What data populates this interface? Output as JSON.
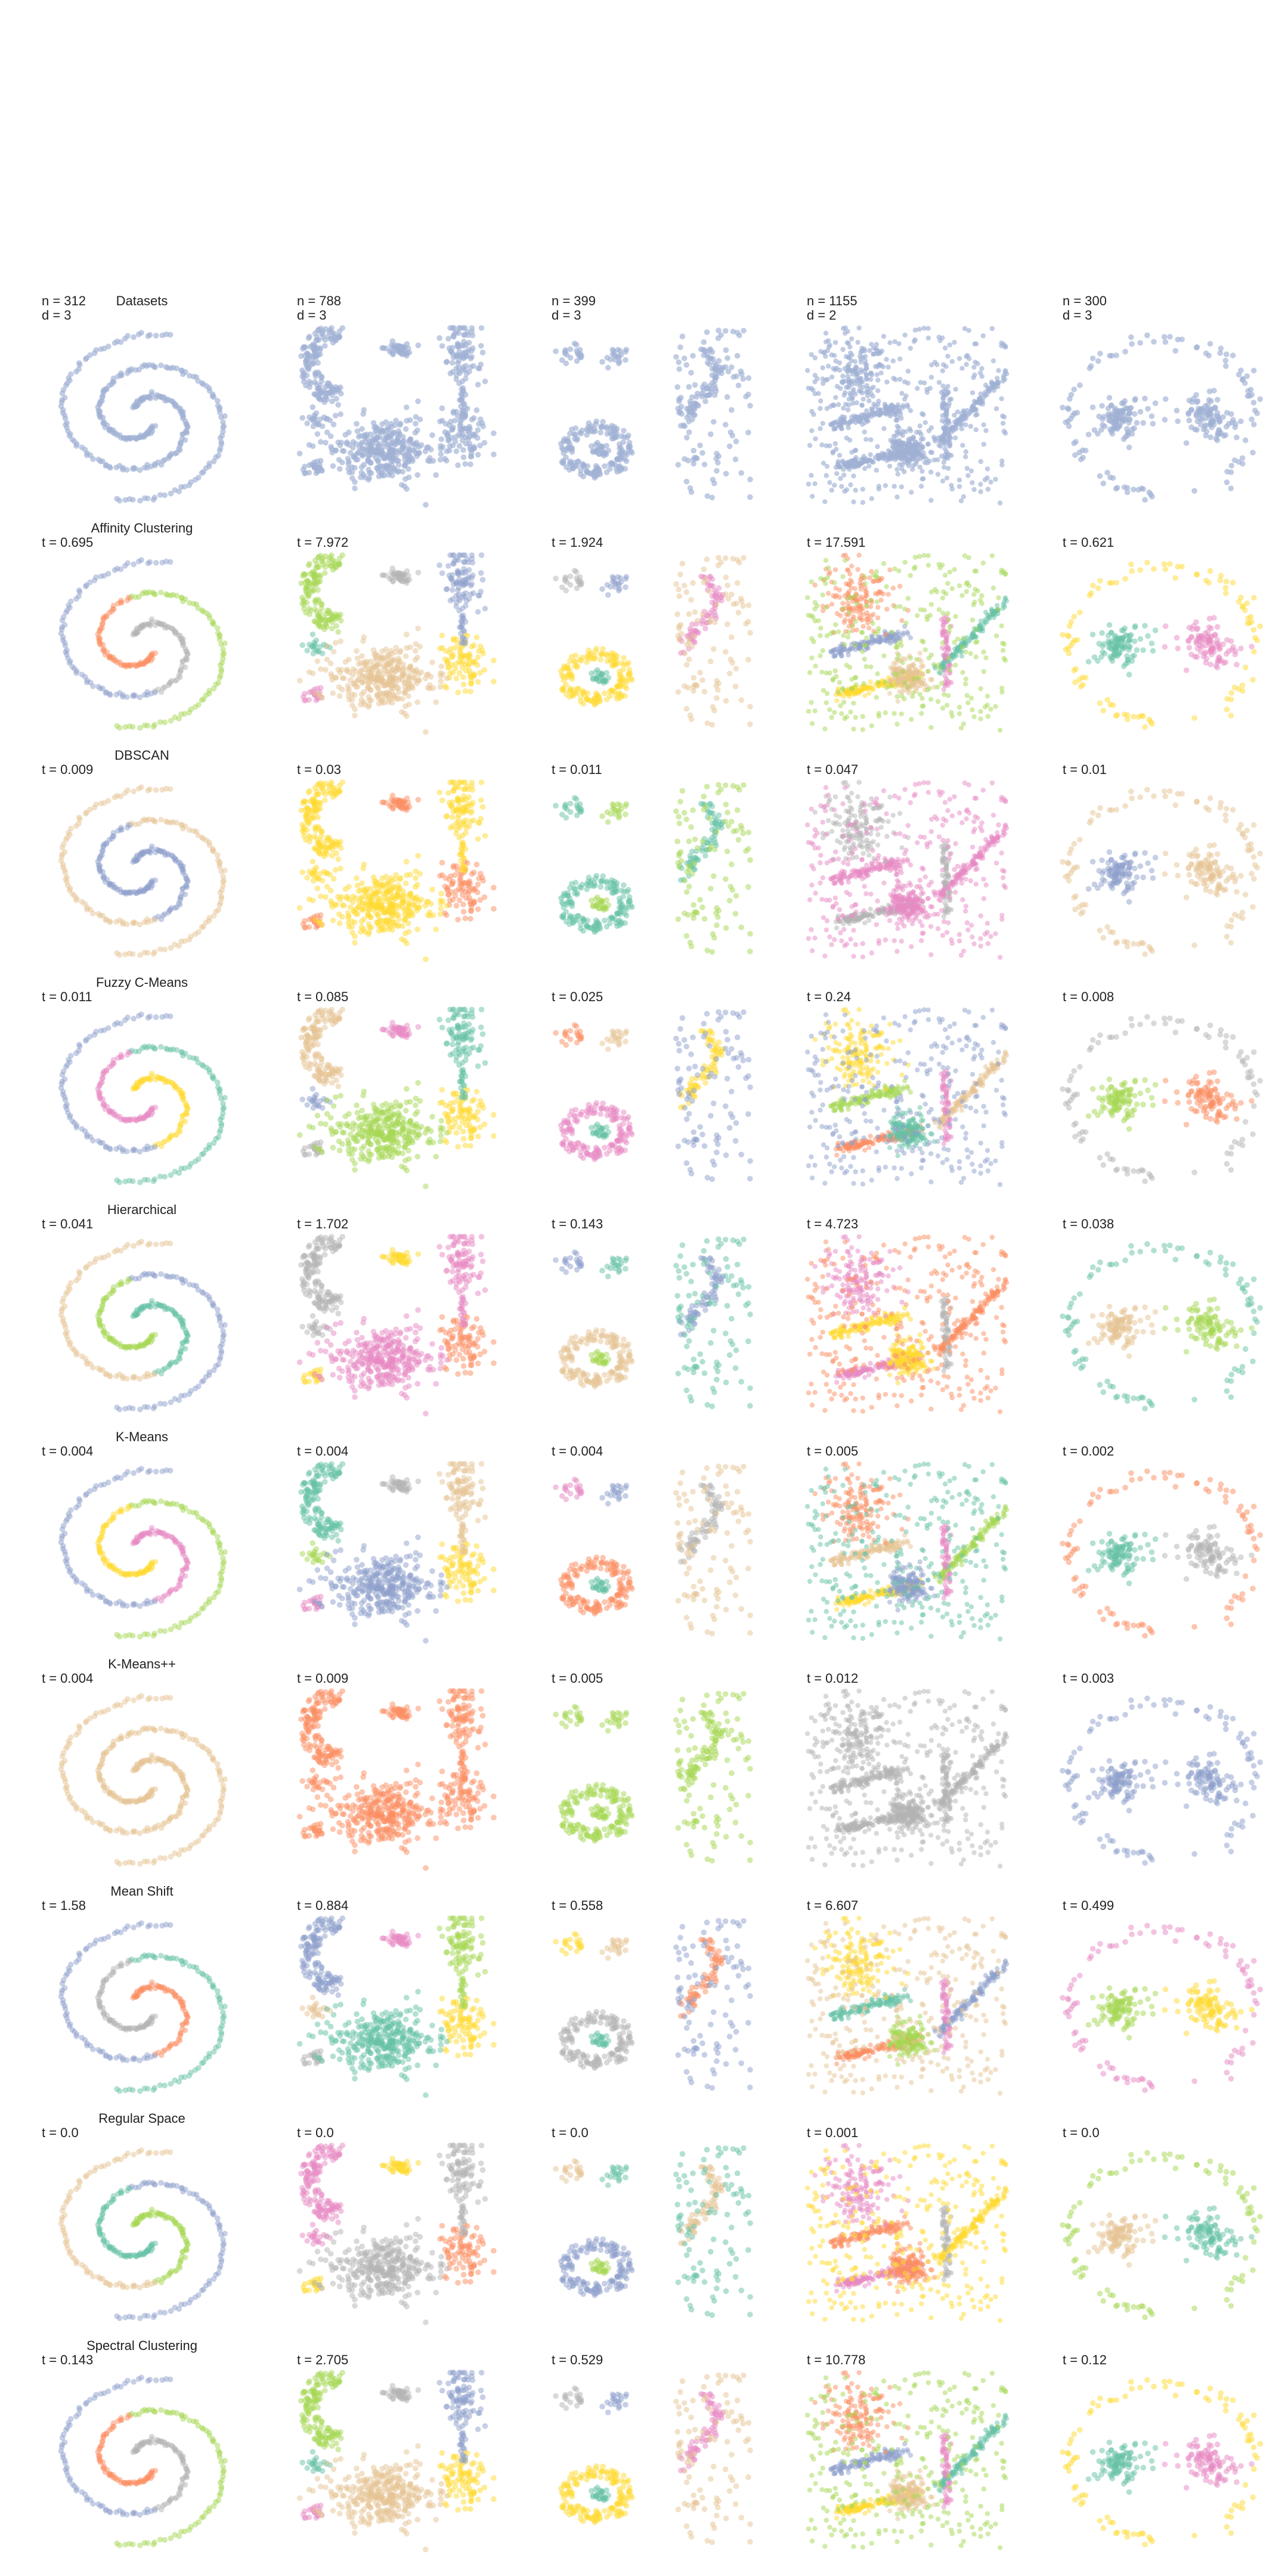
{
  "chart_data": {
    "type": "scatter",
    "row_titles": [
      "Datasets",
      "Affinity Clustering",
      "DBSCAN",
      "Fuzzy C-Means",
      "Hierarchical",
      "K-Means",
      "K-Means++",
      "Mean Shift",
      "Regular Space",
      "Spectral Clustering"
    ],
    "datasets": [
      {
        "id": "spirals",
        "n_label": "n = 312",
        "d_label": "d = 3"
      },
      {
        "id": "blobs",
        "n_label": "n = 788",
        "d_label": "d = 3"
      },
      {
        "id": "mixed",
        "n_label": "n = 399",
        "d_label": "d = 3"
      },
      {
        "id": "lines",
        "n_label": "n = 1155",
        "d_label": "d = 2"
      },
      {
        "id": "ring",
        "n_label": "n = 300",
        "d_label": "d = 3"
      }
    ],
    "timings": [
      [
        "t = 0.695",
        "t = 7.972",
        "t = 1.924",
        "t = 17.591",
        "t = 0.621"
      ],
      [
        "t = 0.009",
        "t = 0.03",
        "t = 0.011",
        "t = 0.047",
        "t = 0.01"
      ],
      [
        "t = 0.011",
        "t = 0.085",
        "t = 0.025",
        "t = 0.24",
        "t = 0.008"
      ],
      [
        "t = 0.041",
        "t = 1.702",
        "t = 0.143",
        "t = 4.723",
        "t = 0.038"
      ],
      [
        "t = 0.004",
        "t = 0.004",
        "t = 0.004",
        "t = 0.005",
        "t = 0.002"
      ],
      [
        "t = 0.004",
        "t = 0.009",
        "t = 0.005",
        "t = 0.012",
        "t = 0.003"
      ],
      [
        "t = 1.58",
        "t = 0.884",
        "t = 0.558",
        "t = 6.607",
        "t = 0.499"
      ],
      [
        "t = 0.0",
        "t = 0.0",
        "t = 0.0",
        "t = 0.001",
        "t = 0.0"
      ],
      [
        "t = 0.143",
        "t = 2.705",
        "t = 0.529",
        "t = 10.778",
        "t = 0.12"
      ]
    ],
    "point_color_default": "#9fb1d4",
    "palette": [
      "#66c2a5",
      "#fc8d62",
      "#8da0cb",
      "#e78ac3",
      "#a6d854",
      "#ffd92f",
      "#e5c494",
      "#b3b3b3"
    ],
    "grid": false,
    "axes_visible": false
  }
}
